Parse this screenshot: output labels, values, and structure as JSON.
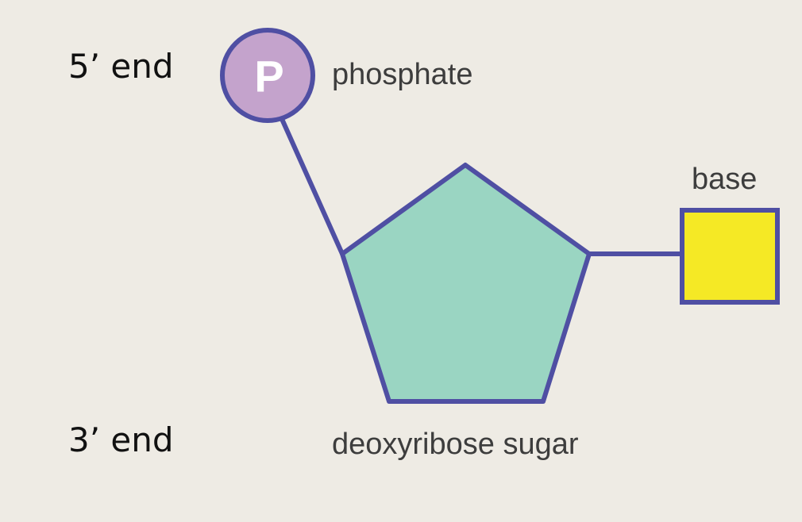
{
  "labels": {
    "five_prime_end": "5’ end",
    "three_prime_end": "3’ end",
    "phosphate": "phosphate",
    "base": "base",
    "sugar": "deoxyribose sugar",
    "phosphate_symbol": "P"
  },
  "colors": {
    "background": "#eeebe4",
    "outline": "#4f4fa3",
    "phosphate_fill": "#c4a3cc",
    "sugar_fill": "#9ad5c2",
    "base_fill": "#f5e925",
    "end_text": "#111111",
    "part_text": "#3d3d3d",
    "symbol_text": "#ffffff"
  }
}
